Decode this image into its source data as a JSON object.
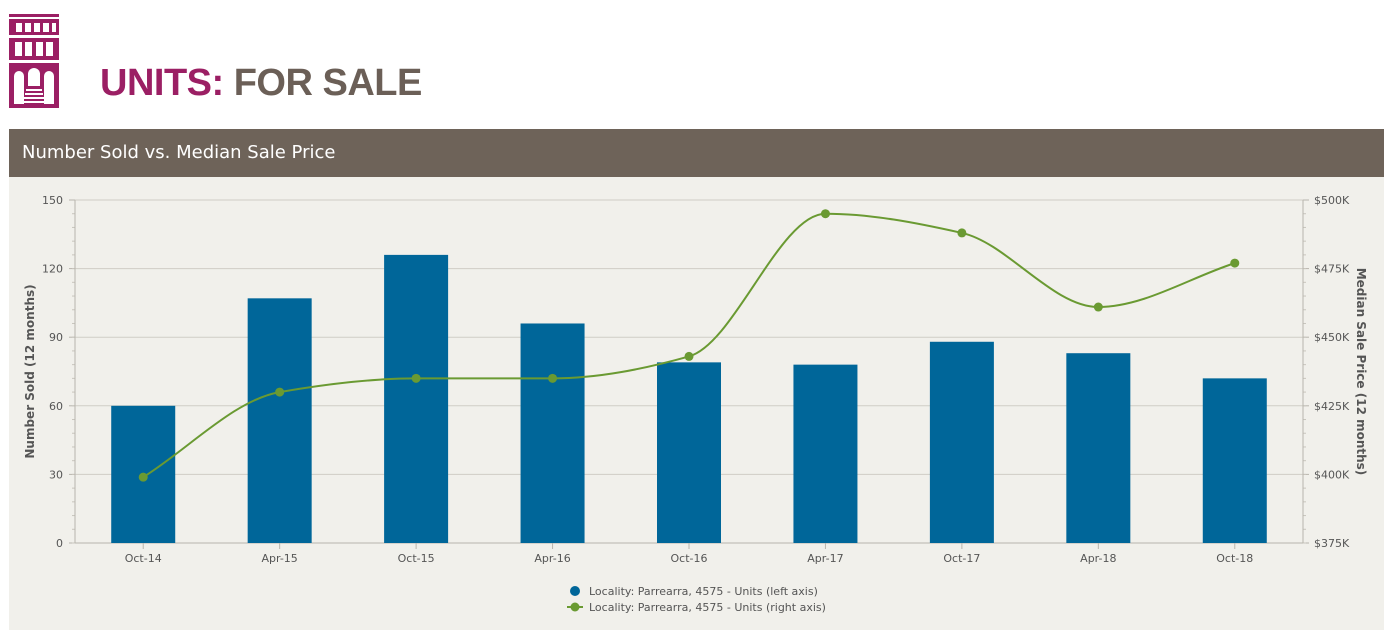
{
  "header": {
    "title_accent": "UNITS:",
    "title_rest": "FOR SALE",
    "logo_icon": "building-icon",
    "accent_color": "#9b1f64",
    "rest_color": "#6b5f57"
  },
  "chart_data": {
    "type": "bar",
    "title": "Number Sold vs. Median Sale Price",
    "categories": [
      "Oct-14",
      "Apr-15",
      "Oct-15",
      "Apr-16",
      "Oct-16",
      "Apr-17",
      "Oct-17",
      "Apr-18",
      "Oct-18"
    ],
    "series": [
      {
        "name": "Locality: Parrearra, 4575 - Units (left axis)",
        "type": "bar",
        "axis": "left",
        "color": "#006699",
        "values": [
          60,
          107,
          126,
          96,
          79,
          78,
          88,
          83,
          72
        ]
      },
      {
        "name": "Locality: Parrearra, 4575 - Units (right axis)",
        "type": "line",
        "axis": "right",
        "color": "#6a9a32",
        "values": [
          399000,
          430000,
          435000,
          435000,
          443000,
          495000,
          488000,
          461000,
          477000
        ]
      }
    ],
    "ylabel": "Number Sold (12 months)",
    "ylim": [
      0,
      150
    ],
    "yticks": [
      "0",
      "30",
      "60",
      "90",
      "120",
      "150"
    ],
    "y2label": "Median Sale Price (12 months)",
    "y2lim": [
      375000,
      500000
    ],
    "y2ticks": [
      "$375K",
      "$400K",
      "$425K",
      "$450K",
      "$475K",
      "$500K"
    ],
    "grid": true,
    "legend_position": "bottom-center"
  }
}
